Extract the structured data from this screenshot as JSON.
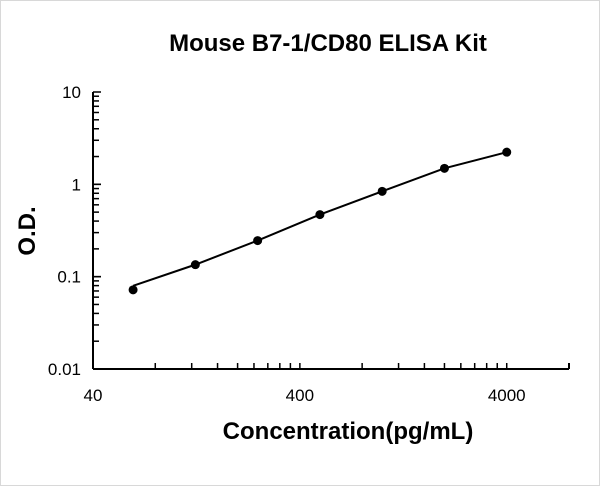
{
  "chart_data": {
    "type": "line",
    "title": "Mouse B7-1/CD80 ELISA Kit",
    "xlabel": "Concentration(pg/mL)",
    "ylabel": "O.D.",
    "xscale": "log",
    "yscale": "log",
    "xlim": [
      40,
      8000
    ],
    "ylim": [
      0.01,
      10
    ],
    "xticks": [
      "40",
      "400",
      "4000"
    ],
    "yticks": [
      "0.01",
      "0.1",
      "1",
      "10"
    ],
    "grid": false,
    "series": [
      {
        "x": [
          62.5,
          125,
          250,
          500,
          1000,
          2000,
          4000
        ],
        "y": [
          0.072,
          0.135,
          0.246,
          0.47,
          0.84,
          1.49,
          2.23
        ],
        "color": "#000000",
        "marker": "circle"
      }
    ]
  }
}
